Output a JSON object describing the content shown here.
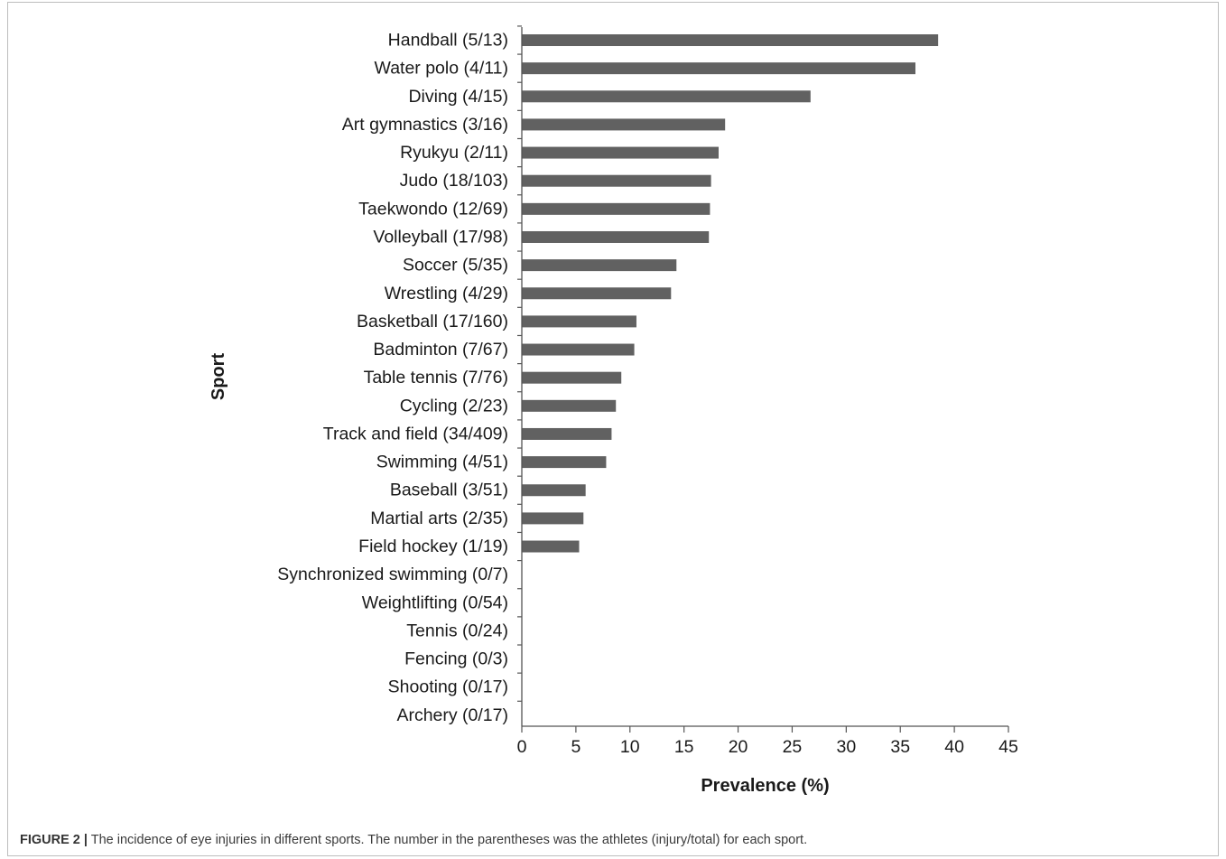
{
  "caption": {
    "label": "FIGURE 2 |",
    "text": "The incidence of eye injuries in different sports. The number in the parentheses was the athletes (injury/total) for each sport."
  },
  "colors": {
    "bar": "#616161",
    "axis": "#555555",
    "text": "#1a1a1a",
    "frame": "#bdbdbd"
  },
  "chart_data": {
    "type": "bar",
    "orientation": "horizontal",
    "title": "",
    "xlabel": "Prevalence (%)",
    "ylabel": "Sport",
    "xlim": [
      0,
      45
    ],
    "xticks": [
      0,
      5,
      10,
      15,
      20,
      25,
      30,
      35,
      40,
      45
    ],
    "grid": false,
    "legend": "none",
    "categories": [
      "Handball (5/13)",
      "Water polo (4/11)",
      "Diving (4/15)",
      "Art gymnastics (3/16)",
      "Ryukyu (2/11)",
      "Judo (18/103)",
      "Taekwondo (12/69)",
      "Volleyball (17/98)",
      "Soccer (5/35)",
      "Wrestling (4/29)",
      "Basketball (17/160)",
      "Badminton (7/67)",
      "Table tennis (7/76)",
      "Cycling (2/23)",
      "Track and field (34/409)",
      "Swimming (4/51)",
      "Baseball (3/51)",
      "Martial arts (2/35)",
      "Field hockey (1/19)",
      "Synchronized swimming (0/7)",
      "Weightlifting (0/54)",
      "Tennis (0/24)",
      "Fencing (0/3)",
      "Shooting (0/17)",
      "Archery (0/17)"
    ],
    "values": [
      38.5,
      36.4,
      26.7,
      18.8,
      18.2,
      17.5,
      17.4,
      17.3,
      14.3,
      13.8,
      10.6,
      10.4,
      9.2,
      8.7,
      8.3,
      7.8,
      5.9,
      5.7,
      5.3,
      0,
      0,
      0,
      0,
      0,
      0
    ]
  }
}
